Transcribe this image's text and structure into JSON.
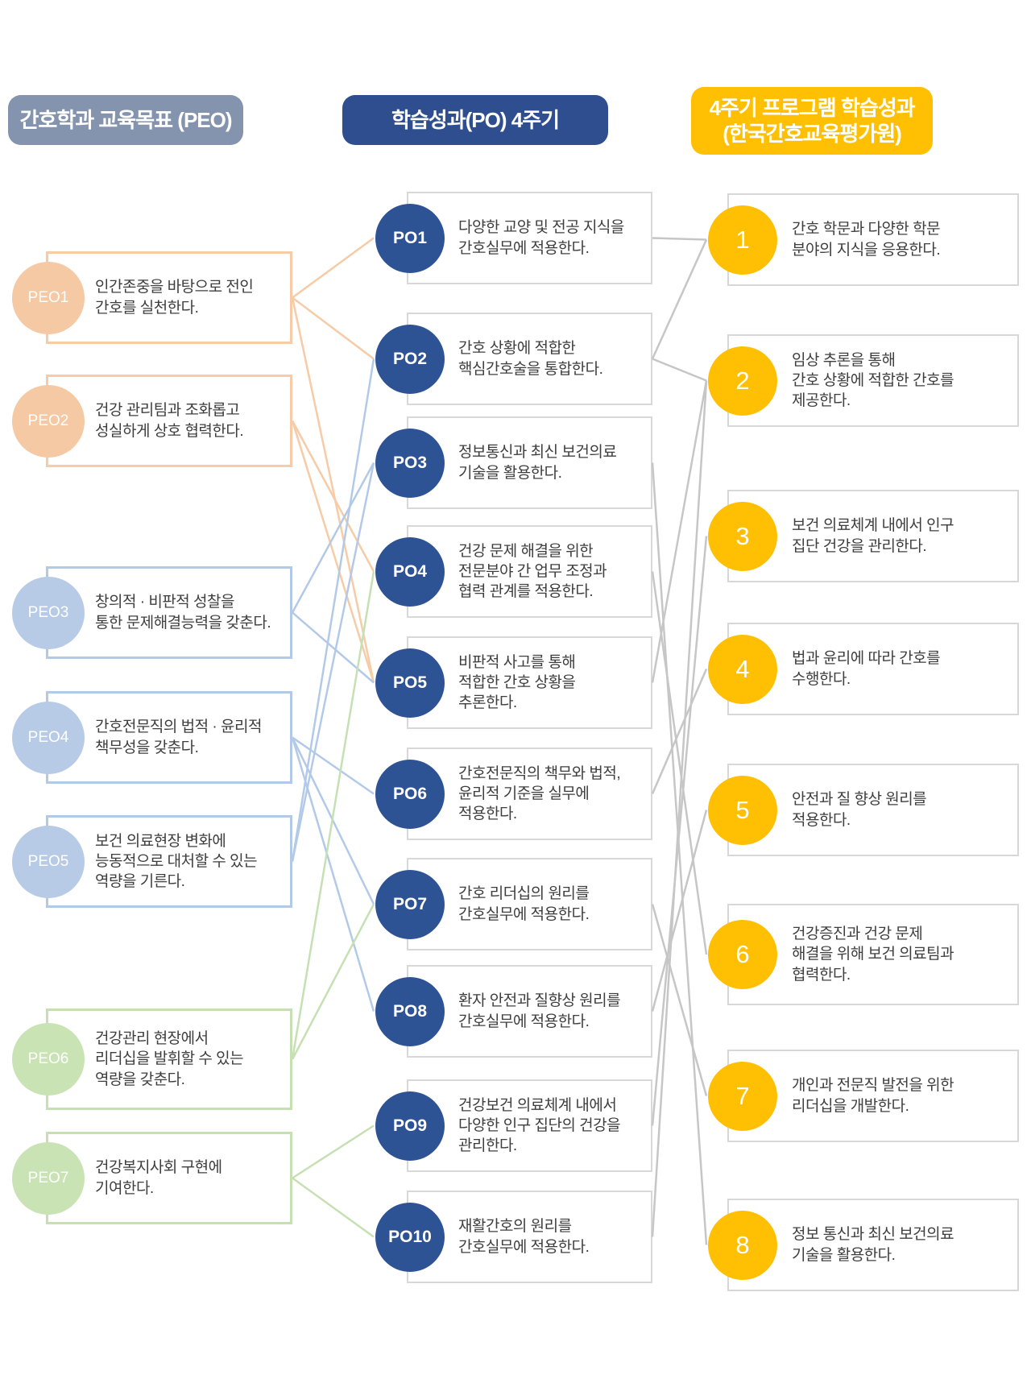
{
  "columns": {
    "peo": {
      "header": "간호학과 교육목표 (PEO)",
      "header_color": "#8493AE",
      "items": [
        {
          "id": "PEO1",
          "group": "peach",
          "text": "인간존중을 바탕으로 전인\n간호를 실천한다."
        },
        {
          "id": "PEO2",
          "group": "peach",
          "text": "건강 관리팀과 조화롭고\n성실하게 상호 협력한다."
        },
        {
          "id": "PEO3",
          "group": "blue",
          "text": "창의적 · 비판적 성찰을\n통한 문제해결능력을 갖춘다."
        },
        {
          "id": "PEO4",
          "group": "blue",
          "text": "간호전문직의 법적 · 윤리적\n책무성을 갖춘다."
        },
        {
          "id": "PEO5",
          "group": "blue",
          "text": "보건 의료현장 변화에\n능동적으로 대처할 수 있는\n역량을 기른다."
        },
        {
          "id": "PEO6",
          "group": "green",
          "text": "건강관리 현장에서\n리더십을 발휘할 수 있는\n역량을 갖춘다."
        },
        {
          "id": "PEO7",
          "group": "green",
          "text": "건강복지사회 구현에\n기여한다."
        }
      ]
    },
    "po": {
      "header": "학습성과(PO) 4주기",
      "header_color": "#2E4E8F",
      "items": [
        {
          "id": "PO1",
          "text": "다양한 교양 및 전공 지식을\n간호실무에 적용한다."
        },
        {
          "id": "PO2",
          "text": "간호 상황에 적합한\n핵심간호술을 통합한다."
        },
        {
          "id": "PO3",
          "text": "정보통신과 최신 보건의료\n기술을 활용한다."
        },
        {
          "id": "PO4",
          "text": "건강 문제 해결을 위한\n전문분야 간 업무 조정과\n협력 관계를 적용한다."
        },
        {
          "id": "PO5",
          "text": "비판적 사고를 통해\n적합한 간호 상황을\n추론한다."
        },
        {
          "id": "PO6",
          "text": "간호전문직의 책무와 법적,\n윤리적 기준을 실무에\n적용한다."
        },
        {
          "id": "PO7",
          "text": "간호 리더십의 원리를\n간호실무에 적용한다."
        },
        {
          "id": "PO8",
          "text": "환자 안전과 질향상 원리를\n간호실무에 적용한다."
        },
        {
          "id": "PO9",
          "text": "건강보건 의료체계 내에서\n다양한 인구 집단의 건강을\n관리한다."
        },
        {
          "id": "PO10",
          "text": "재활간호의 원리를\n간호실무에 적용한다."
        }
      ]
    },
    "outcomes": {
      "header": "4주기 프로그램 학습성과\n(한국간호교육평가원)",
      "header_color": "#FFC003",
      "items": [
        {
          "id": "1",
          "text": "간호 학문과 다양한 학문\n분야의 지식을 응용한다."
        },
        {
          "id": "2",
          "text": "임상 추론을 통해\n간호 상황에 적합한 간호를\n제공한다."
        },
        {
          "id": "3",
          "text": "보건 의료체계 내에서 인구\n집단 건강을 관리한다."
        },
        {
          "id": "4",
          "text": "법과 윤리에 따라 간호를\n수행한다."
        },
        {
          "id": "5",
          "text": "안전과 질 향상 원리를\n적용한다."
        },
        {
          "id": "6",
          "text": "건강증진과 건강 문제\n해결을 위해 보건 의료팀과\n협력한다."
        },
        {
          "id": "7",
          "text": "개인과 전문직 발전을 위한\n리더십을 개발한다."
        },
        {
          "id": "8",
          "text": "정보 통신과 최신 보건의료\n기술을 활용한다."
        }
      ]
    }
  },
  "colors": {
    "peach": "#F6CBA6",
    "blue": "#B3C9E8",
    "green": "#C6E0B4",
    "gray_line": "#C6C6C6",
    "po_circle": "#2E5395",
    "outcome_circle": "#FFC003",
    "box_border_gray": "#D8D8D8"
  },
  "connections": {
    "peo_to_po": [
      {
        "from": "PEO1",
        "to": "PO1",
        "group": "peach"
      },
      {
        "from": "PEO1",
        "to": "PO2",
        "group": "peach"
      },
      {
        "from": "PEO1",
        "to": "PO5",
        "group": "peach"
      },
      {
        "from": "PEO2",
        "to": "PO4",
        "group": "peach"
      },
      {
        "from": "PEO2",
        "to": "PO5",
        "group": "peach"
      },
      {
        "from": "PEO3",
        "to": "PO3",
        "group": "blue"
      },
      {
        "from": "PEO3",
        "to": "PO5",
        "group": "blue"
      },
      {
        "from": "PEO4",
        "to": "PO6",
        "group": "blue"
      },
      {
        "from": "PEO4",
        "to": "PO7",
        "group": "blue"
      },
      {
        "from": "PEO4",
        "to": "PO8",
        "group": "blue"
      },
      {
        "from": "PEO5",
        "to": "PO2",
        "group": "blue"
      },
      {
        "from": "PEO5",
        "to": "PO3",
        "group": "blue"
      },
      {
        "from": "PEO6",
        "to": "PO4",
        "group": "green"
      },
      {
        "from": "PEO6",
        "to": "PO7",
        "group": "green"
      },
      {
        "from": "PEO7",
        "to": "PO9",
        "group": "green"
      },
      {
        "from": "PEO7",
        "to": "PO10",
        "group": "green"
      }
    ],
    "po_to_outcome": [
      {
        "from": "PO1",
        "to": "1"
      },
      {
        "from": "PO2",
        "to": "1"
      },
      {
        "from": "PO2",
        "to": "2"
      },
      {
        "from": "PO3",
        "to": "8"
      },
      {
        "from": "PO4",
        "to": "6"
      },
      {
        "from": "PO5",
        "to": "2"
      },
      {
        "from": "PO6",
        "to": "4"
      },
      {
        "from": "PO7",
        "to": "7"
      },
      {
        "from": "PO8",
        "to": "5"
      },
      {
        "from": "PO9",
        "to": "3"
      },
      {
        "from": "PO10",
        "to": "2"
      }
    ]
  }
}
